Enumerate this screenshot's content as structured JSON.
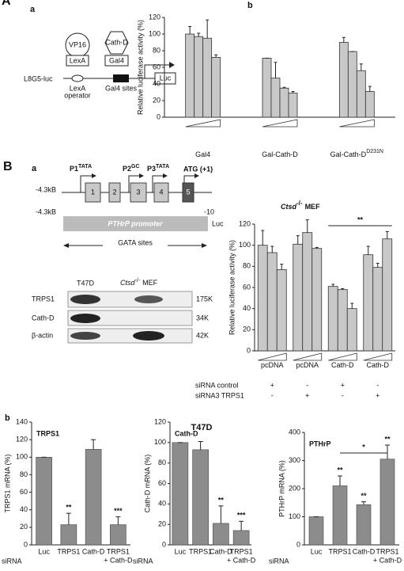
{
  "labels": {
    "panel_A": "A",
    "panel_A_a": "a",
    "panel_A_b": "b",
    "panel_B": "B",
    "panel_B_a": "a",
    "panel_B_b": "b"
  },
  "construct": {
    "activator": "VP16",
    "fusion": "Cath-D",
    "lexa_box": "LexA",
    "gal4_box": "Gal4",
    "reporter": "L8G5-luc",
    "luc": "Luc",
    "operator": [
      "LexA",
      "operator"
    ],
    "gal4_sites": "Gal4 sites"
  },
  "promoter": {
    "start": "-4.3kB",
    "promoters": [
      [
        "P1",
        "TATA"
      ],
      [
        "P2",
        "GC"
      ],
      [
        "P3",
        "TATA"
      ]
    ],
    "atg": "ATG (+1)",
    "exons": [
      "1",
      "2",
      "3",
      "4",
      "5"
    ],
    "construct_start": "-4.3kB",
    "construct_end": "-10",
    "promoter_label": "PTHrP promoter",
    "luc": "Luc",
    "gata": "GATA sites"
  },
  "western": {
    "lanes": [
      "T47D",
      [
        "Ctsd",
        "-/-",
        "MEF"
      ]
    ],
    "rows": [
      [
        "TRPS1",
        "175K"
      ],
      [
        "Cath-D",
        "34K"
      ],
      [
        "β-actin",
        "42K"
      ]
    ]
  },
  "heading_b": "T47D",
  "chart_data": [
    {
      "type": "grouped_bar",
      "ylabel": "Relative luciferase activity (%)",
      "categories": [
        "Gal4",
        "Gal-Cath-D",
        "Gal-Cath-D"
      ],
      "category_superscripts": [
        null,
        null,
        "D231N"
      ],
      "values": [
        [
          100,
          97,
          95,
          72
        ],
        [
          71,
          47,
          35,
          29
        ],
        [
          90,
          79,
          56,
          31
        ]
      ],
      "errors": [
        [
          9,
          4,
          22,
          3
        ],
        [
          0,
          19,
          1,
          2
        ],
        [
          6,
          0,
          8,
          6
        ]
      ],
      "color": "#c8c8c8",
      "ylim": [
        0,
        120
      ],
      "yticks": [
        0,
        20,
        40,
        60,
        80,
        100,
        120
      ]
    },
    {
      "type": "grouped_bar",
      "title": [
        "Ctsd",
        "-/-",
        "MEF"
      ],
      "ylabel": "Relative luciferase activity (%)",
      "categories": [
        "pcDNA",
        "pcDNA",
        "Cath-D",
        "Cath-D"
      ],
      "values": [
        [
          100,
          93,
          77
        ],
        [
          101,
          112,
          97
        ],
        [
          61,
          58,
          40
        ],
        [
          91,
          79,
          106
        ]
      ],
      "errors": [
        [
          14,
          6,
          5
        ],
        [
          8,
          12,
          1
        ],
        [
          2,
          1,
          5
        ],
        [
          8,
          4,
          7
        ]
      ],
      "conditions": [
        {
          "label": "siRNA control",
          "marks": [
            "+",
            "-",
            "+",
            "-"
          ]
        },
        {
          "label": "siRNA3 TRPS1",
          "marks": [
            "-",
            "+",
            "-",
            "+"
          ]
        }
      ],
      "bracket_label": "**",
      "color": "#c8c8c8",
      "ylim": [
        0,
        120
      ],
      "yticks": [
        0,
        20,
        40,
        60,
        80,
        100,
        120
      ]
    },
    {
      "type": "bar",
      "title": "TRPS1",
      "ylabel": "TRPS1 mRNA (%)",
      "x_label": "siRNA",
      "categories": [
        "Luc",
        "TRPS1",
        "Cath-D",
        "TRPS1"
      ],
      "category_sublabels": [
        null,
        null,
        null,
        "+ Cath-D"
      ],
      "values": [
        100,
        23,
        109,
        23
      ],
      "errors": [
        0,
        13,
        11,
        9
      ],
      "significance": [
        null,
        "**",
        null,
        "***"
      ],
      "color": "#8c8c8c",
      "ylim": [
        0,
        140
      ],
      "yticks": [
        0,
        20,
        40,
        60,
        80,
        100,
        120,
        140
      ]
    },
    {
      "type": "bar",
      "title": "Cath-D",
      "ylabel": "Cath-D mRNA (%)",
      "x_label": "siRNA",
      "categories": [
        "Luc",
        "TRPS1",
        "Cath-D",
        "TRPS1"
      ],
      "category_sublabels": [
        null,
        null,
        null,
        "+ Cath-D"
      ],
      "values": [
        100,
        93,
        21,
        14
      ],
      "errors": [
        0,
        8,
        17,
        9
      ],
      "significance": [
        null,
        null,
        "**",
        "***"
      ],
      "color": "#8c8c8c",
      "ylim": [
        0,
        120
      ],
      "yticks": [
        0,
        20,
        40,
        60,
        80,
        100,
        120
      ]
    },
    {
      "type": "bar",
      "title": "PTHrP",
      "ylabel": "PTHrP mRNA (%)",
      "x_label": "siRNA",
      "categories": [
        "Luc",
        "TRPS1",
        "Cath-D",
        "TRPS1"
      ],
      "category_sublabels": [
        null,
        null,
        null,
        "+ Cath-D"
      ],
      "values": [
        100,
        210,
        143,
        305
      ],
      "errors": [
        0,
        35,
        10,
        50
      ],
      "significance": [
        null,
        "**",
        "**",
        "**"
      ],
      "bracket_label": "*",
      "color": "#8c8c8c",
      "ylim": [
        0,
        400
      ],
      "yticks": [
        0,
        100,
        200,
        300,
        400
      ]
    }
  ]
}
